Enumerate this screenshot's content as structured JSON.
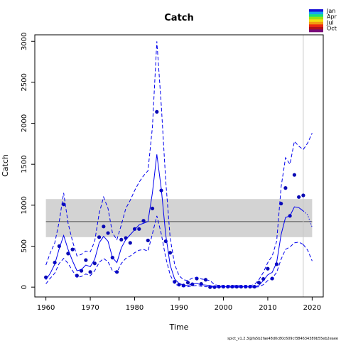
{
  "chart_data": {
    "type": "line",
    "title": "Catch",
    "xlabel": "Time",
    "ylabel": "Catch",
    "xlim": [
      1957.5,
      2022.5
    ],
    "ylim": [
      -120,
      3080
    ],
    "xticks": [
      1960,
      1970,
      1980,
      1990,
      2000,
      2010,
      2020
    ],
    "yticks": [
      0,
      500,
      1000,
      1500,
      2000,
      2500,
      3000
    ],
    "grid": false,
    "legend_position": "top-right",
    "legend": {
      "labels": [
        "Jan",
        "Apr",
        "Jul",
        "Oct"
      ],
      "colors": [
        "#1a12d8",
        "#18a4f0",
        "#18e07a",
        "#9ee20e",
        "#f2e010",
        "#f29a10",
        "#ee2a10",
        "#b0101a",
        "#7a0a78"
      ]
    },
    "band": {
      "name": "MSY band",
      "lower": 610,
      "upper": 1075,
      "x_range": [
        1960,
        2020
      ],
      "line": 800,
      "color": "#d3d3d3"
    },
    "vline": {
      "x": 2018,
      "color": "#c8c8c8"
    },
    "series": [
      {
        "type": "scatter",
        "color": "#0a0ab4",
        "x": [
          1960,
          1962,
          1963,
          1964,
          1965,
          1966,
          1967,
          1968,
          1969,
          1970,
          1971,
          1972,
          1973,
          1974,
          1975,
          1976,
          1977,
          1978,
          1979,
          1980,
          1981,
          1982,
          1983,
          1984,
          1985,
          1986,
          1987,
          1988,
          1989,
          1990,
          1991,
          1992,
          1993,
          1994,
          1995,
          1996,
          1997,
          1998,
          1999,
          2000,
          2001,
          2002,
          2003,
          2004,
          2005,
          2006,
          2007,
          2008,
          2009,
          2010,
          2011,
          2012,
          2013,
          2014,
          2015,
          2016,
          2017,
          2018
        ],
        "y": [
          120,
          300,
          500,
          1010,
          410,
          460,
          140,
          200,
          330,
          185,
          290,
          610,
          740,
          660,
          360,
          185,
          580,
          600,
          540,
          710,
          710,
          810,
          570,
          960,
          2140,
          1180,
          560,
          420,
          65,
          30,
          20,
          55,
          35,
          105,
          40,
          90,
          0,
          0,
          5,
          5,
          5,
          5,
          5,
          5,
          5,
          5,
          5,
          55,
          100,
          225,
          105,
          280,
          1020,
          1210,
          870,
          1370,
          1100,
          1120
        ]
      },
      {
        "type": "line",
        "color": "#0000ee",
        "dash": "solid",
        "x": [
          1960,
          1961,
          1962,
          1963,
          1964,
          1965,
          1966,
          1967,
          1968,
          1969,
          1970,
          1971,
          1972,
          1973,
          1974,
          1975,
          1976,
          1977,
          1978,
          1979,
          1980,
          1981,
          1982,
          1983,
          1984,
          1985,
          1986,
          1987,
          1988,
          1989,
          1990,
          1991,
          1992,
          1993,
          1994,
          1995,
          1996,
          1997,
          1998,
          1999,
          2000,
          2001,
          2002,
          2003,
          2004,
          2005,
          2006,
          2007,
          2008,
          2009,
          2010,
          2011,
          2012,
          2013,
          2014,
          2015,
          2016,
          2017,
          2018
        ],
        "y": [
          90,
          170,
          280,
          470,
          630,
          460,
          320,
          200,
          215,
          270,
          250,
          340,
          540,
          620,
          560,
          360,
          300,
          480,
          580,
          640,
          700,
          760,
          780,
          800,
          1150,
          1620,
          1200,
          640,
          270,
          100,
          45,
          25,
          20,
          40,
          45,
          30,
          25,
          20,
          5,
          5,
          5,
          5,
          5,
          5,
          5,
          5,
          5,
          5,
          20,
          80,
          150,
          180,
          300,
          640,
          850,
          870,
          980,
          970,
          930
        ]
      },
      {
        "type": "line",
        "color": "#0000ee",
        "dash": "dashed",
        "x": [
          1960,
          1961,
          1962,
          1963,
          1964,
          1965,
          1966,
          1967,
          1968,
          1969,
          1970,
          1971,
          1972,
          1973,
          1974,
          1975,
          1976,
          1977,
          1978,
          1979,
          1980,
          1981,
          1982,
          1983,
          1984,
          1985,
          1986,
          1987,
          1988,
          1989,
          1990,
          1991,
          1992,
          1993,
          1994,
          1995,
          1996,
          1997,
          1998,
          1999,
          2000,
          2001,
          2002,
          2003,
          2004,
          2005,
          2006,
          2007,
          2008,
          2009,
          2010,
          2011,
          2012,
          2013,
          2014,
          2015,
          2016,
          2017,
          2018
        ],
        "y": [
          270,
          420,
          540,
          800,
          1150,
          780,
          560,
          380,
          400,
          440,
          430,
          560,
          900,
          1100,
          960,
          660,
          580,
          760,
          960,
          1060,
          1180,
          1280,
          1360,
          1420,
          1950,
          3000,
          2220,
          1300,
          600,
          280,
          140,
          90,
          80,
          110,
          120,
          100,
          90,
          80,
          30,
          20,
          20,
          20,
          20,
          20,
          20,
          20,
          20,
          30,
          90,
          180,
          300,
          380,
          560,
          1220,
          1580,
          1500,
          1780,
          1720,
          1680
        ]
      },
      {
        "type": "line",
        "color": "#0000ee",
        "dash": "dashed",
        "x": [
          1960,
          1961,
          1962,
          1963,
          1964,
          1965,
          1966,
          1967,
          1968,
          1969,
          1970,
          1971,
          1972,
          1973,
          1974,
          1975,
          1976,
          1977,
          1978,
          1979,
          1980,
          1981,
          1982,
          1983,
          1984,
          1985,
          1986,
          1987,
          1988,
          1989,
          1990,
          1991,
          1992,
          1993,
          1994,
          1995,
          1996,
          1997,
          1998,
          1999,
          2000,
          2001,
          2002,
          2003,
          2004,
          2005,
          2006,
          2007,
          2008,
          2009,
          2010,
          2011,
          2012,
          2013,
          2014,
          2015,
          2016,
          2017,
          2018
        ],
        "y": [
          40,
          110,
          170,
          290,
          350,
          290,
          200,
          120,
          130,
          160,
          140,
          200,
          300,
          350,
          310,
          200,
          180,
          290,
          350,
          380,
          420,
          450,
          460,
          440,
          650,
          870,
          650,
          360,
          150,
          40,
          15,
          5,
          5,
          15,
          20,
          10,
          5,
          5,
          0,
          0,
          0,
          0,
          0,
          0,
          0,
          0,
          0,
          0,
          5,
          30,
          80,
          110,
          180,
          340,
          460,
          490,
          540,
          550,
          520
        ]
      },
      {
        "type": "line",
        "color": "#0000ee",
        "dash": "dotted",
        "x": [
          2018,
          2019,
          2020
        ],
        "y": [
          930,
          880,
          730
        ]
      },
      {
        "type": "line",
        "color": "#0000ee",
        "dash": "dashed",
        "x": [
          2018,
          2019,
          2020
        ],
        "y": [
          1680,
          1760,
          1880
        ]
      },
      {
        "type": "line",
        "color": "#0000ee",
        "dash": "dashed",
        "x": [
          2018,
          2019,
          2020
        ],
        "y": [
          520,
          450,
          320
        ]
      }
    ]
  },
  "footer_text": "spict_v1.2.3@fa5b2fae48d0c80c609cf384634389b55eb2eaee"
}
